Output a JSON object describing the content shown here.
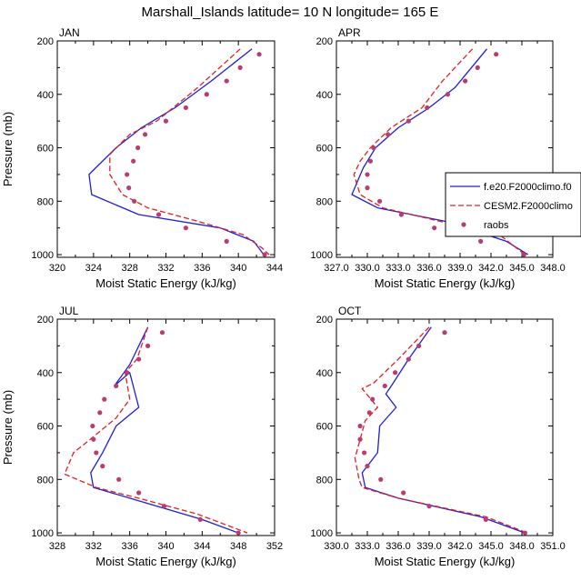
{
  "title": "Marshall_Islands  latitude= 10 N longitude= 165 E",
  "legend": {
    "entries": [
      {
        "label": "f.e20.F2000climo.f0",
        "color": "#1f1fd6",
        "style": "solid"
      },
      {
        "label": "CESM2.F2000climo",
        "color": "#e02020",
        "style": "dashed"
      },
      {
        "label": "raobs",
        "color": "#b83c6e",
        "style": "markers"
      }
    ]
  },
  "chart_data": [
    {
      "type": "line",
      "title": "JAN",
      "xlabel": "Moist Static Energy (kJ/kg)",
      "ylabel": "Pressure (mb)",
      "xlim": [
        320,
        344
      ],
      "ylim": [
        1010,
        200
      ],
      "xticks": [
        "320",
        "324",
        "328",
        "332",
        "336",
        "340",
        "344"
      ],
      "yticks": [
        "200",
        "400",
        "600",
        "800",
        "1000"
      ],
      "series": [
        {
          "name": "f.e20.F2000climo.f0",
          "points": [
            [
              341.5,
              230
            ],
            [
              337.0,
              350
            ],
            [
              333.0,
              450
            ],
            [
              329.3,
              525
            ],
            [
              326.5,
              600
            ],
            [
              323.5,
              700
            ],
            [
              323.8,
              775
            ],
            [
              329.0,
              850
            ],
            [
              338.0,
              900
            ],
            [
              341.7,
              950
            ],
            [
              342.8,
              1000
            ]
          ]
        },
        {
          "name": "CESM2.F2000climo",
          "points": [
            [
              340.2,
              230
            ],
            [
              335.5,
              375
            ],
            [
              331.0,
              500
            ],
            [
              328.0,
              550
            ],
            [
              325.8,
              625
            ],
            [
              325.8,
              700
            ],
            [
              327.2,
              775
            ],
            [
              330.0,
              825
            ],
            [
              335.5,
              875
            ],
            [
              340.5,
              925
            ],
            [
              342.6,
              975
            ],
            [
              343.4,
              1000
            ]
          ]
        },
        {
          "name": "raobs",
          "points": [
            [
              342.3,
              250
            ],
            [
              340.2,
              300
            ],
            [
              338.7,
              350
            ],
            [
              336.5,
              400
            ],
            [
              334.2,
              450
            ],
            [
              332.0,
              500
            ],
            [
              329.7,
              550
            ],
            [
              328.9,
              600
            ],
            [
              328.4,
              650
            ],
            [
              327.7,
              700
            ],
            [
              327.9,
              750
            ],
            [
              328.5,
              800
            ],
            [
              331.2,
              850
            ],
            [
              334.2,
              900
            ],
            [
              338.7,
              950
            ],
            [
              342.9,
              1000
            ]
          ]
        }
      ]
    },
    {
      "type": "line",
      "title": "APR",
      "xlabel": "Moist Static Energy (kJ/kg)",
      "ylabel": "",
      "xlim": [
        327,
        348
      ],
      "ylim": [
        1010,
        200
      ],
      "xticks": [
        "327.0",
        "330.0",
        "333.0",
        "336.0",
        "339.0",
        "342.0",
        "345.0",
        "348.0"
      ],
      "yticks": [
        "200",
        "400",
        "600",
        "800",
        "1000"
      ],
      "series": [
        {
          "name": "f.e20.F2000climo.f0",
          "points": [
            [
              341.6,
              230
            ],
            [
              338.5,
              375
            ],
            [
              336.0,
              450
            ],
            [
              333.0,
              525
            ],
            [
              330.8,
              600
            ],
            [
              329.6,
              675
            ],
            [
              328.5,
              775
            ],
            [
              331.0,
              825
            ],
            [
              337.5,
              875
            ],
            [
              343.5,
              950
            ],
            [
              345.6,
              1000
            ]
          ]
        },
        {
          "name": "CESM2.F2000climo",
          "points": [
            [
              340.2,
              230
            ],
            [
              337.3,
              350
            ],
            [
              335.3,
              450
            ],
            [
              332.3,
              525
            ],
            [
              330.3,
              600
            ],
            [
              329.3,
              650
            ],
            [
              328.7,
              700
            ],
            [
              329.3,
              775
            ],
            [
              331.5,
              825
            ],
            [
              337.0,
              875
            ],
            [
              342.8,
              925
            ],
            [
              345.3,
              1000
            ]
          ]
        },
        {
          "name": "raobs",
          "points": [
            [
              342.5,
              250
            ],
            [
              340.7,
              300
            ],
            [
              339.5,
              350
            ],
            [
              337.8,
              400
            ],
            [
              335.8,
              450
            ],
            [
              334.0,
              500
            ],
            [
              332.0,
              550
            ],
            [
              330.6,
              600
            ],
            [
              330.3,
              650
            ],
            [
              330.0,
              700
            ],
            [
              330.0,
              750
            ],
            [
              331.2,
              800
            ],
            [
              333.3,
              850
            ],
            [
              336.5,
              900
            ],
            [
              341.0,
              950
            ],
            [
              345.2,
              1000
            ]
          ]
        }
      ]
    },
    {
      "type": "line",
      "title": "JUL",
      "xlabel": "Moist Static Energy (kJ/kg)",
      "ylabel": "Pressure (mb)",
      "xlim": [
        328,
        352
      ],
      "ylim": [
        1010,
        200
      ],
      "xticks": [
        "328",
        "332",
        "336",
        "340",
        "344",
        "348",
        "352"
      ],
      "yticks": [
        "200",
        "400",
        "600",
        "800",
        "1000"
      ],
      "series": [
        {
          "name": "f.e20.F2000climo.f0",
          "points": [
            [
              338.0,
              230
            ],
            [
              336.0,
              370
            ],
            [
              334.3,
              450
            ],
            [
              336.0,
              400
            ],
            [
              337.0,
              530
            ],
            [
              334.5,
              600
            ],
            [
              333.0,
              700
            ],
            [
              331.7,
              775
            ],
            [
              332.0,
              830
            ],
            [
              336.0,
              870
            ],
            [
              344.0,
              950
            ],
            [
              348.0,
              1000
            ]
          ]
        },
        {
          "name": "CESM2.F2000climo",
          "points": [
            [
              338.0,
              230
            ],
            [
              336.8,
              350
            ],
            [
              335.5,
              400
            ],
            [
              336.0,
              500
            ],
            [
              334.5,
              570
            ],
            [
              332.0,
              640
            ],
            [
              329.8,
              700
            ],
            [
              328.8,
              780
            ],
            [
              332.3,
              830
            ],
            [
              337.5,
              875
            ],
            [
              343.5,
              930
            ],
            [
              349.0,
              1000
            ]
          ]
        },
        {
          "name": "raobs",
          "points": [
            [
              339.6,
              250
            ],
            [
              338.0,
              300
            ],
            [
              337.0,
              350
            ],
            [
              335.7,
              400
            ],
            [
              334.5,
              450
            ],
            [
              333.2,
              500
            ],
            [
              332.7,
              550
            ],
            [
              331.9,
              600
            ],
            [
              332.0,
              650
            ],
            [
              332.3,
              700
            ],
            [
              333.0,
              750
            ],
            [
              334.8,
              800
            ],
            [
              337.0,
              850
            ],
            [
              339.8,
              900
            ],
            [
              343.8,
              950
            ],
            [
              348.0,
              1000
            ]
          ]
        }
      ]
    },
    {
      "type": "line",
      "title": "OCT",
      "xlabel": "Moist Static Energy (kJ/kg)",
      "ylabel": "",
      "xlim": [
        330,
        351
      ],
      "ylim": [
        1010,
        200
      ],
      "xticks": [
        "330.0",
        "333.0",
        "336.0",
        "339.0",
        "342.0",
        "345.0",
        "348.0",
        "351.0"
      ],
      "yticks": [
        "200",
        "400",
        "600",
        "800",
        "1000"
      ],
      "series": [
        {
          "name": "f.e20.F2000climo.f0",
          "points": [
            [
              339.2,
              230
            ],
            [
              337.0,
              350
            ],
            [
              335.5,
              440
            ],
            [
              334.8,
              480
            ],
            [
              335.8,
              530
            ],
            [
              334.2,
              600
            ],
            [
              334.0,
              700
            ],
            [
              332.5,
              775
            ],
            [
              332.8,
              830
            ],
            [
              336.0,
              870
            ],
            [
              344.0,
              940
            ],
            [
              348.3,
              1000
            ]
          ]
        },
        {
          "name": "CESM2.F2000climo",
          "points": [
            [
              339.0,
              230
            ],
            [
              336.0,
              350
            ],
            [
              333.6,
              440
            ],
            [
              332.5,
              460
            ],
            [
              334.0,
              530
            ],
            [
              332.8,
              580
            ],
            [
              332.3,
              650
            ],
            [
              331.8,
              720
            ],
            [
              332.2,
              800
            ],
            [
              332.5,
              830
            ],
            [
              336.0,
              870
            ],
            [
              344.5,
              940
            ],
            [
              348.5,
              1000
            ]
          ]
        },
        {
          "name": "raobs",
          "points": [
            [
              340.5,
              250
            ],
            [
              338.0,
              300
            ],
            [
              337.0,
              350
            ],
            [
              335.7,
              400
            ],
            [
              334.7,
              450
            ],
            [
              333.5,
              500
            ],
            [
              333.2,
              550
            ],
            [
              332.3,
              600
            ],
            [
              332.3,
              650
            ],
            [
              332.7,
              700
            ],
            [
              333.0,
              750
            ],
            [
              334.3,
              800
            ],
            [
              336.5,
              850
            ],
            [
              339.0,
              900
            ],
            [
              344.5,
              950
            ],
            [
              348.3,
              1000
            ]
          ]
        }
      ]
    }
  ]
}
